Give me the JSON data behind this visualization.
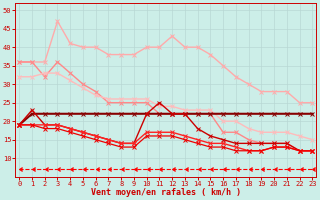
{
  "xlabel": "Vent moyen/en rafales ( km/h )",
  "background_color": "#cceee8",
  "grid_color": "#aadddd",
  "x": [
    0,
    1,
    2,
    3,
    4,
    5,
    6,
    7,
    8,
    9,
    10,
    11,
    12,
    13,
    14,
    15,
    16,
    17,
    18,
    19,
    20,
    21,
    22,
    23
  ],
  "lines": [
    {
      "y": [
        36,
        36,
        36,
        47,
        41,
        40,
        40,
        38,
        38,
        38,
        40,
        40,
        43,
        40,
        40,
        38,
        35,
        32,
        30,
        28,
        28,
        28,
        25,
        25
      ],
      "color": "#ffaaaa",
      "lw": 1.0,
      "marker": "x",
      "ms": 2.5
    },
    {
      "y": [
        36,
        36,
        32,
        36,
        33,
        30,
        28,
        25,
        25,
        25,
        25,
        22,
        22,
        22,
        22,
        22,
        17,
        17,
        15,
        14,
        14,
        14,
        12,
        12
      ],
      "color": "#ff8888",
      "lw": 1.0,
      "marker": "x",
      "ms": 2.5
    },
    {
      "y": [
        32,
        32,
        33,
        33,
        31,
        29,
        27,
        26,
        26,
        26,
        26,
        24,
        24,
        23,
        23,
        23,
        20,
        20,
        18,
        17,
        17,
        17,
        16,
        15
      ],
      "color": "#ffbbbb",
      "lw": 1.0,
      "marker": "x",
      "ms": 2.5
    },
    {
      "y": [
        19,
        22,
        22,
        22,
        22,
        22,
        22,
        22,
        22,
        22,
        22,
        22,
        22,
        22,
        22,
        22,
        22,
        22,
        22,
        22,
        22,
        22,
        22,
        22
      ],
      "color": "#880000",
      "lw": 1.5,
      "marker": "x",
      "ms": 2.5
    },
    {
      "y": [
        19,
        23,
        19,
        19,
        18,
        17,
        16,
        15,
        14,
        14,
        22,
        25,
        22,
        22,
        18,
        16,
        15,
        14,
        14,
        14,
        14,
        14,
        12,
        12
      ],
      "color": "#cc0000",
      "lw": 1.0,
      "marker": "x",
      "ms": 2.5
    },
    {
      "y": [
        19,
        19,
        19,
        19,
        18,
        17,
        16,
        15,
        14,
        14,
        17,
        17,
        17,
        16,
        15,
        14,
        14,
        13,
        12,
        12,
        13,
        13,
        12,
        12
      ],
      "color": "#ff2222",
      "lw": 1.0,
      "marker": "x",
      "ms": 2.5
    },
    {
      "y": [
        19,
        19,
        18,
        18,
        17,
        16,
        15,
        14,
        13,
        13,
        16,
        16,
        16,
        15,
        14,
        13,
        13,
        12,
        12,
        12,
        13,
        13,
        12,
        12
      ],
      "color": "#ee0000",
      "lw": 0.9,
      "marker": "x",
      "ms": 2.5
    },
    {
      "y": [
        7,
        7,
        7,
        7,
        7,
        7,
        7,
        7,
        7,
        7,
        7,
        7,
        7,
        7,
        7,
        7,
        7,
        7,
        7,
        7,
        7,
        7,
        7,
        7
      ],
      "color": "#ff0000",
      "lw": 0.8,
      "marker": 4,
      "ms": 3,
      "linestyle": "--"
    }
  ],
  "ylim": [
    5,
    52
  ],
  "xlim": [
    -0.3,
    23.3
  ],
  "yticks": [
    10,
    15,
    20,
    25,
    30,
    35,
    40,
    45,
    50
  ],
  "xticks": [
    0,
    1,
    2,
    3,
    4,
    5,
    6,
    7,
    8,
    9,
    10,
    11,
    12,
    13,
    14,
    15,
    16,
    17,
    18,
    19,
    20,
    21,
    22,
    23
  ]
}
